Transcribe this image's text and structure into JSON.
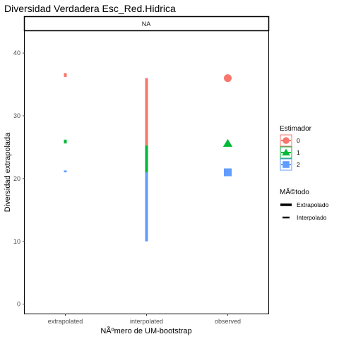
{
  "chart_data": {
    "type": "scatter",
    "title": "Diversidad Verdadera Esc_Red.Hidrica",
    "facet_label": "NA",
    "xlabel": "NÃºmero de UM-bootstrap",
    "ylabel": "Diversidad extrapolada",
    "categories": [
      "extrapolated",
      "interpolated",
      "observed"
    ],
    "ylim": [
      -1.5,
      43.5
    ],
    "yticks": [
      0,
      10,
      20,
      30,
      40
    ],
    "grid": false,
    "series": [
      {
        "name": "0",
        "color": "#F8766D",
        "shape": "circle",
        "extrapolated": [
          36.2,
          36.8
        ],
        "interpolated": [
          25.3,
          36.0
        ],
        "observed": 36.0
      },
      {
        "name": "1",
        "color": "#00BA38",
        "shape": "triangle",
        "extrapolated": [
          25.6,
          26.2
        ],
        "interpolated": [
          21.0,
          25.3
        ],
        "observed": 25.6
      },
      {
        "name": "2",
        "color": "#619CFF",
        "shape": "square",
        "extrapolated": [
          21.0,
          21.3
        ],
        "interpolated": [
          10.0,
          21.0
        ],
        "observed": 21.0
      }
    ],
    "legend": {
      "position": "right",
      "estimador_title": "Estimador",
      "estimador_items": [
        "0",
        "1",
        "2"
      ],
      "metodo_title": "MÃ©todo",
      "metodo_items": [
        "Extrapolado",
        "Interpolado"
      ]
    }
  }
}
